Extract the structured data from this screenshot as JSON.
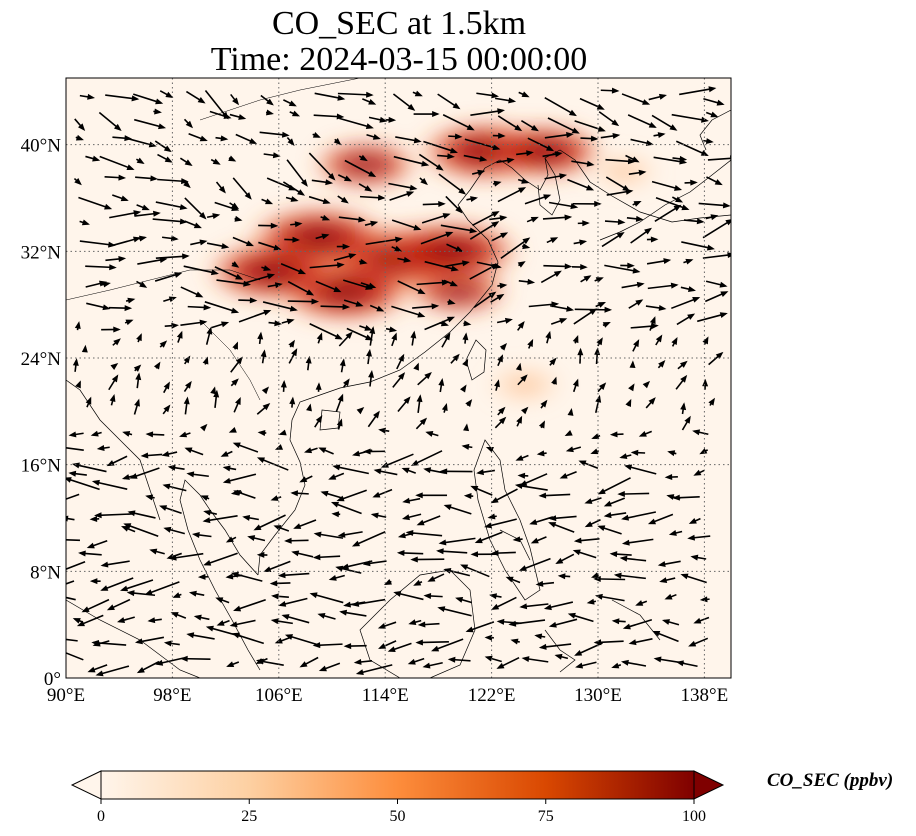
{
  "title": {
    "line1": "CO_SEC at 1.5km",
    "line2": "Time: 2024-03-15 00:00:00"
  },
  "map": {
    "lon_range": [
      90,
      140
    ],
    "lat_range": [
      0,
      45
    ],
    "lon_ticks": [
      "90°E",
      "98°E",
      "106°E",
      "114°E",
      "122°E",
      "130°E",
      "138°E"
    ],
    "lon_tick_values": [
      90,
      98,
      106,
      114,
      122,
      130,
      138
    ],
    "lat_ticks": [
      "0°",
      "8°N",
      "16°N",
      "24°N",
      "32°N",
      "40°N"
    ],
    "lat_tick_values": [
      0,
      8,
      16,
      24,
      32,
      40
    ],
    "gridlines": "dotted",
    "field_colormap": [
      "#fff5eb",
      "#fdd0a2",
      "#fd8d3c",
      "#d94801",
      "#7f0000"
    ],
    "plumes": [
      {
        "lon": 115,
        "lat": 31.5,
        "value": 100
      },
      {
        "lon": 109,
        "lat": 33,
        "value": 95
      },
      {
        "lon": 111,
        "lat": 29,
        "value": 90
      },
      {
        "lon": 119,
        "lat": 32,
        "value": 90
      },
      {
        "lon": 105.5,
        "lat": 30.5,
        "value": 85
      },
      {
        "lon": 121.5,
        "lat": 39.5,
        "value": 85
      },
      {
        "lon": 126,
        "lat": 39.5,
        "value": 70
      },
      {
        "lon": 112.5,
        "lat": 38.5,
        "value": 55
      },
      {
        "lon": 119.5,
        "lat": 29,
        "value": 50
      },
      {
        "lon": 124.5,
        "lat": 22,
        "value": 25
      },
      {
        "lon": 132,
        "lat": 38,
        "value": 15
      }
    ]
  },
  "colorbar": {
    "label": "CO_SEC (ppbv)",
    "ticks": [
      "0",
      "25",
      "50",
      "75",
      "100"
    ],
    "tick_values": [
      0,
      25,
      50,
      75,
      100
    ],
    "range": [
      0,
      100
    ],
    "extend": "both"
  }
}
